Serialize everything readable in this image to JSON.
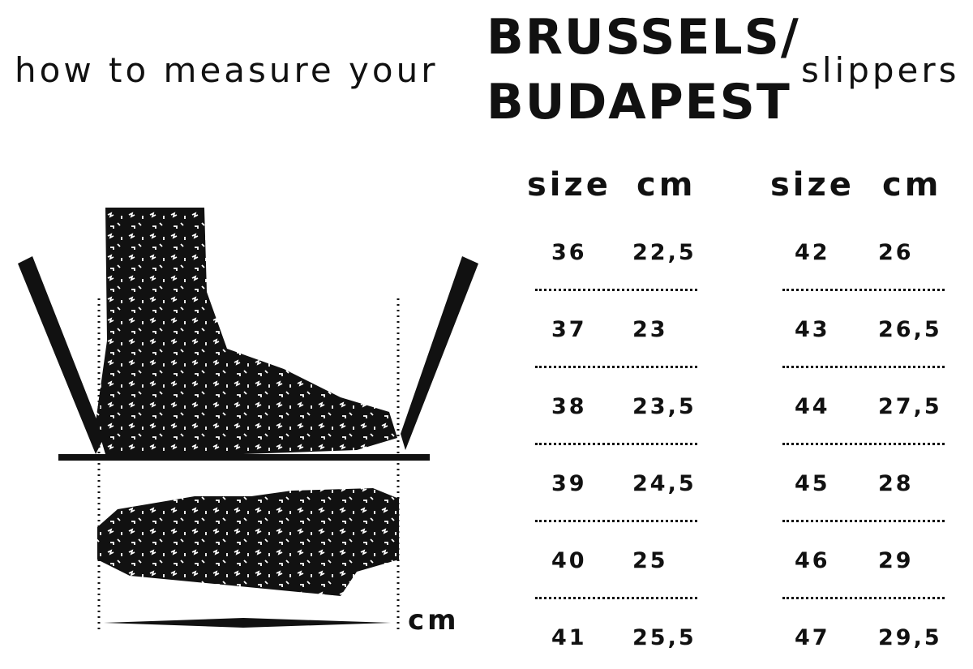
{
  "title": {
    "prefix": "how to measure your",
    "model_line1": "BRUSSELS/",
    "model_line2": "BUDAPEST",
    "suffix": "slippers"
  },
  "diagram": {
    "measure_unit_label": "cm"
  },
  "table": {
    "headers": {
      "size": "size",
      "cm": "cm"
    },
    "left": [
      {
        "size": "36",
        "cm": "22,5"
      },
      {
        "size": "37",
        "cm": "23"
      },
      {
        "size": "38",
        "cm": "23,5"
      },
      {
        "size": "39",
        "cm": "24,5"
      },
      {
        "size": "40",
        "cm": "25"
      },
      {
        "size": "41",
        "cm": "25,5"
      }
    ],
    "right": [
      {
        "size": "42",
        "cm": "26"
      },
      {
        "size": "43",
        "cm": "26,5"
      },
      {
        "size": "44",
        "cm": "27,5"
      },
      {
        "size": "45",
        "cm": "28"
      },
      {
        "size": "46",
        "cm": "29"
      },
      {
        "size": "47",
        "cm": "29,5"
      }
    ]
  }
}
